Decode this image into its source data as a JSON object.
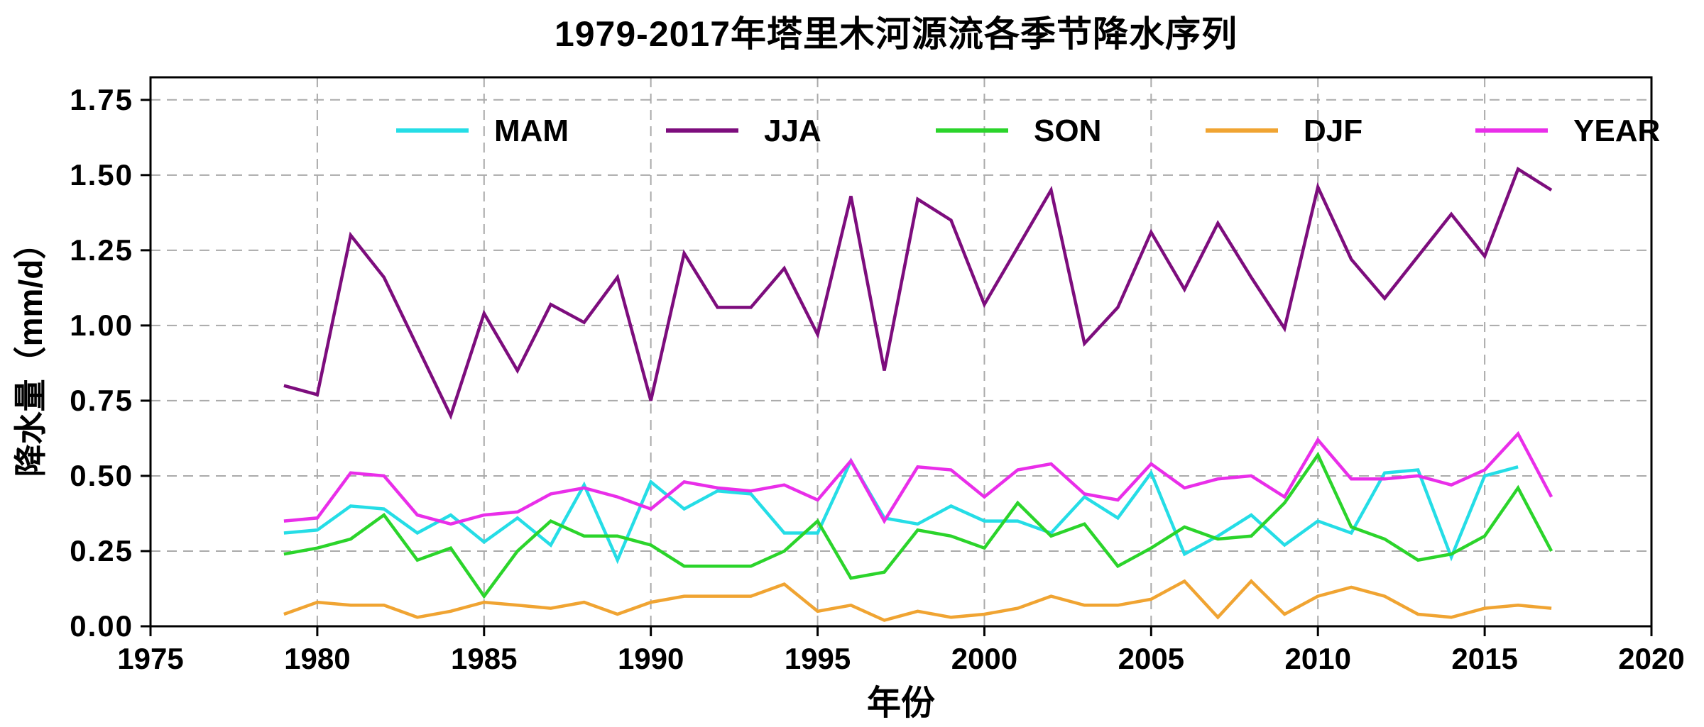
{
  "title": "1979-2017年塔里木河源流各季节降水序列",
  "chart_data": {
    "type": "line",
    "title": "1979-2017年塔里木河源流各季节降水序列",
    "xlabel": "年份",
    "ylabel": "降水量（mm/d）",
    "xlim": [
      1975,
      2020
    ],
    "ylim": [
      0,
      1.825
    ],
    "grid": true,
    "grid_color": "#aaaaaa",
    "legend_position": "top-center-inside",
    "xticks": [
      1975,
      1980,
      1985,
      1990,
      1995,
      2000,
      2005,
      2010,
      2015,
      2020
    ],
    "ytick_labels": [
      "0.00",
      "0.25",
      "0.50",
      "0.75",
      "1.00",
      "1.25",
      "1.50",
      "1.75"
    ],
    "ytick_values": [
      0,
      0.25,
      0.5,
      0.75,
      1.0,
      1.25,
      1.5,
      1.75
    ],
    "x": [
      1979,
      1980,
      1981,
      1982,
      1983,
      1984,
      1985,
      1986,
      1987,
      1988,
      1989,
      1990,
      1991,
      1992,
      1993,
      1994,
      1995,
      1996,
      1997,
      1998,
      1999,
      2000,
      2001,
      2002,
      2003,
      2004,
      2005,
      2006,
      2007,
      2008,
      2009,
      2010,
      2011,
      2012,
      2013,
      2014,
      2015,
      2016,
      2017
    ],
    "series": [
      {
        "name": "MAM",
        "color": "#25dde6",
        "values": [
          0.31,
          0.32,
          0.4,
          0.39,
          0.31,
          0.37,
          0.28,
          0.36,
          0.27,
          0.47,
          0.22,
          0.48,
          0.39,
          0.45,
          0.44,
          0.31,
          0.31,
          0.55,
          0.36,
          0.34,
          0.4,
          0.35,
          0.35,
          0.31,
          0.43,
          0.36,
          0.51,
          0.24,
          0.3,
          0.37,
          0.27,
          0.35,
          0.31,
          0.51,
          0.52,
          0.23,
          0.5,
          0.53,
          null
        ]
      },
      {
        "name": "JJA",
        "color": "#7d0d7d",
        "values": [
          0.8,
          0.77,
          1.3,
          1.16,
          0.93,
          0.7,
          1.04,
          0.85,
          1.07,
          1.01,
          1.16,
          0.75,
          1.24,
          1.06,
          1.06,
          1.19,
          0.97,
          1.43,
          0.85,
          1.42,
          1.35,
          1.07,
          1.26,
          1.45,
          0.94,
          1.06,
          1.31,
          1.12,
          1.34,
          1.16,
          0.99,
          1.46,
          1.22,
          1.09,
          1.23,
          1.37,
          1.23,
          1.52,
          1.45
        ]
      },
      {
        "name": "SON",
        "color": "#2bd42b",
        "values": [
          0.24,
          0.26,
          0.29,
          0.37,
          0.22,
          0.26,
          0.1,
          0.25,
          0.35,
          0.3,
          0.3,
          0.27,
          0.2,
          0.2,
          0.2,
          0.25,
          0.35,
          0.16,
          0.18,
          0.32,
          0.3,
          0.26,
          0.41,
          0.3,
          0.34,
          0.2,
          0.26,
          0.33,
          0.29,
          0.3,
          0.41,
          0.57,
          0.33,
          0.29,
          0.22,
          0.24,
          0.3,
          0.46,
          0.25
        ]
      },
      {
        "name": "DJF",
        "color": "#f0a432",
        "values": [
          0.04,
          0.08,
          0.07,
          0.07,
          0.03,
          0.05,
          0.08,
          0.07,
          0.06,
          0.08,
          0.04,
          0.08,
          0.1,
          0.1,
          0.1,
          0.14,
          0.05,
          0.07,
          0.02,
          0.05,
          0.03,
          0.04,
          0.06,
          0.1,
          0.07,
          0.07,
          0.09,
          0.15,
          0.03,
          0.15,
          0.04,
          0.1,
          0.13,
          0.1,
          0.04,
          0.03,
          0.06,
          0.07,
          0.06
        ]
      },
      {
        "name": "YEAR",
        "color": "#e92ee9",
        "values": [
          0.35,
          0.36,
          0.51,
          0.5,
          0.37,
          0.34,
          0.37,
          0.38,
          0.44,
          0.46,
          0.43,
          0.39,
          0.48,
          0.46,
          0.45,
          0.47,
          0.42,
          0.55,
          0.35,
          0.53,
          0.52,
          0.43,
          0.52,
          0.54,
          0.44,
          0.42,
          0.54,
          0.46,
          0.49,
          0.5,
          0.43,
          0.62,
          0.49,
          0.49,
          0.5,
          0.47,
          0.52,
          0.64,
          0.43
        ]
      }
    ]
  }
}
